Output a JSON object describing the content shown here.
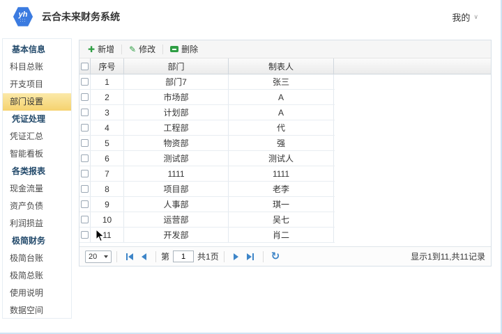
{
  "app": {
    "title": "云合未来财务系统",
    "logo_text": "yh",
    "logo_dots": ":::",
    "user_menu": "我的"
  },
  "sidebar": {
    "items": [
      {
        "label": "基本信息",
        "type": "group",
        "selected": false
      },
      {
        "label": "科目总账",
        "type": "item",
        "selected": false
      },
      {
        "label": "开支项目",
        "type": "item",
        "selected": false
      },
      {
        "label": "部门设置",
        "type": "item",
        "selected": true
      },
      {
        "label": "凭证处理",
        "type": "group",
        "selected": false
      },
      {
        "label": "凭证汇总",
        "type": "item",
        "selected": false
      },
      {
        "label": "智能看板",
        "type": "item",
        "selected": false
      },
      {
        "label": "各类报表",
        "type": "group",
        "selected": false
      },
      {
        "label": "现金流量",
        "type": "item",
        "selected": false
      },
      {
        "label": "资产负债",
        "type": "item",
        "selected": false
      },
      {
        "label": "利润损益",
        "type": "item",
        "selected": false
      },
      {
        "label": "极简财务",
        "type": "group",
        "selected": false
      },
      {
        "label": "极简台账",
        "type": "item",
        "selected": false
      },
      {
        "label": "极简总账",
        "type": "item",
        "selected": false
      },
      {
        "label": "使用说明",
        "type": "item",
        "selected": false
      },
      {
        "label": "数据空间",
        "type": "item",
        "selected": false
      }
    ]
  },
  "toolbar": {
    "add_label": "新增",
    "edit_label": "修改",
    "delete_label": "删除"
  },
  "table": {
    "columns": [
      "序号",
      "部门",
      "制表人"
    ],
    "rows": [
      {
        "no": "1",
        "dept": "部门7",
        "person": "张三"
      },
      {
        "no": "2",
        "dept": "市场部",
        "person": "A"
      },
      {
        "no": "3",
        "dept": "计划部",
        "person": "A"
      },
      {
        "no": "4",
        "dept": "工程部",
        "person": "代"
      },
      {
        "no": "5",
        "dept": "物资部",
        "person": "强"
      },
      {
        "no": "6",
        "dept": "测试部",
        "person": "测试人"
      },
      {
        "no": "7",
        "dept": "1111",
        "person": "1111"
      },
      {
        "no": "8",
        "dept": "项目部",
        "person": "老李"
      },
      {
        "no": "9",
        "dept": "人事部",
        "person": "琪一"
      },
      {
        "no": "10",
        "dept": "运营部",
        "person": "吴七"
      },
      {
        "no": "11",
        "dept": "开发部",
        "person": "肖二"
      }
    ]
  },
  "pager": {
    "page_size": "20",
    "page_prefix": "第",
    "page_value": "1",
    "page_total": "共1页",
    "status": "显示1到11,共11记录"
  },
  "colors": {
    "accent_blue": "#3b7be0",
    "selected_gold": "#f5d26e",
    "icon_green": "#2f9e44",
    "pager_blue": "#3d85c8"
  }
}
